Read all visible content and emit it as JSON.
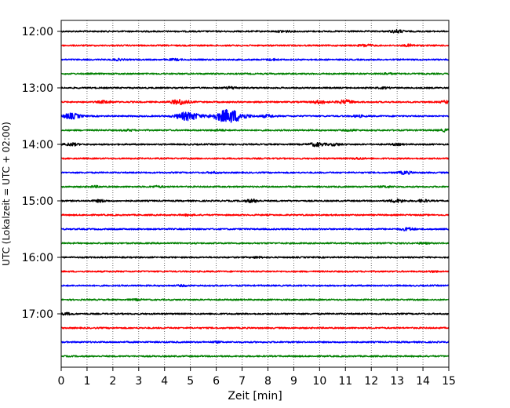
{
  "chart_data": {
    "type": "line",
    "title": "",
    "xlabel": "Zeit  [min]",
    "ylabel": "UTC (Lokalzeit = UTC + 02:00)",
    "xlim": [
      0,
      15
    ],
    "x_ticks": [
      "0",
      "1",
      "2",
      "3",
      "4",
      "5",
      "6",
      "7",
      "8",
      "9",
      "10",
      "11",
      "12",
      "13",
      "14",
      "15"
    ],
    "y_tick_labels": [
      "12:00",
      "13:00",
      "14:00",
      "15:00",
      "16:00",
      "17:00"
    ],
    "grid": "vertical dotted",
    "trace_colors": [
      "#000000",
      "#ff0000",
      "#0000ff",
      "#008000"
    ],
    "traces": [
      {
        "start": "12:00",
        "events": [
          {
            "t": 8.6,
            "a": 1.0
          },
          {
            "t": 13.0,
            "a": 1.6
          }
        ]
      },
      {
        "start": "12:15",
        "events": [
          {
            "t": 11.8,
            "a": 1.3
          },
          {
            "t": 13.5,
            "a": 1.2
          }
        ]
      },
      {
        "start": "12:30",
        "events": [
          {
            "t": 2.2,
            "a": 0.8
          },
          {
            "t": 4.4,
            "a": 0.8
          },
          {
            "t": 8.2,
            "a": 0.8
          }
        ]
      },
      {
        "start": "12:45",
        "events": [
          {
            "t": 12.6,
            "a": 0.8
          }
        ]
      },
      {
        "start": "13:00",
        "events": [
          {
            "t": 6.6,
            "a": 1.2
          },
          {
            "t": 12.5,
            "a": 0.7
          }
        ]
      },
      {
        "start": "13:15",
        "events": [
          {
            "t": 1.7,
            "a": 1.4
          },
          {
            "t": 4.6,
            "a": 3.0
          },
          {
            "t": 10.0,
            "a": 1.8
          },
          {
            "t": 11.0,
            "a": 2.2
          },
          {
            "t": 15.0,
            "a": 1.8
          }
        ]
      },
      {
        "start": "13:30",
        "events": [
          {
            "t": 0.4,
            "a": 3.2
          },
          {
            "t": 4.9,
            "a": 5.0
          },
          {
            "t": 6.5,
            "a": 8.0
          },
          {
            "t": 8.0,
            "a": 1.5
          },
          {
            "t": 11.5,
            "a": 1.0
          }
        ]
      },
      {
        "start": "13:45",
        "events": [
          {
            "t": 2.6,
            "a": 0.7
          },
          {
            "t": 6.1,
            "a": 0.8
          },
          {
            "t": 11.2,
            "a": 0.8
          },
          {
            "t": 14.9,
            "a": 1.3
          }
        ]
      },
      {
        "start": "14:00",
        "events": [
          {
            "t": 0.4,
            "a": 1.5
          },
          {
            "t": 9.9,
            "a": 2.2
          },
          {
            "t": 10.6,
            "a": 1.2
          },
          {
            "t": 13.0,
            "a": 0.8
          }
        ]
      },
      {
        "start": "14:15",
        "events": [
          {
            "t": 11.5,
            "a": 0.8
          }
        ]
      },
      {
        "start": "14:30",
        "events": [
          {
            "t": 5.9,
            "a": 0.8
          },
          {
            "t": 13.3,
            "a": 1.6
          }
        ]
      },
      {
        "start": "14:45",
        "events": [
          {
            "t": 1.3,
            "a": 0.8
          },
          {
            "t": 3.7,
            "a": 0.8
          },
          {
            "t": 12.6,
            "a": 0.8
          }
        ]
      },
      {
        "start": "15:00",
        "events": [
          {
            "t": 1.5,
            "a": 1.2
          },
          {
            "t": 7.4,
            "a": 1.7
          },
          {
            "t": 13.0,
            "a": 1.8
          },
          {
            "t": 14.0,
            "a": 1.2
          }
        ]
      },
      {
        "start": "15:15",
        "events": [
          {
            "t": 4.9,
            "a": 0.7
          }
        ]
      },
      {
        "start": "15:30",
        "events": [
          {
            "t": 13.4,
            "a": 1.6
          }
        ]
      },
      {
        "start": "15:45",
        "events": [
          {
            "t": 14.0,
            "a": 0.6
          }
        ]
      },
      {
        "start": "16:00",
        "events": [
          {
            "t": 7.6,
            "a": 0.7
          }
        ]
      },
      {
        "start": "16:15",
        "events": [
          {
            "t": 14.4,
            "a": 0.6
          }
        ]
      },
      {
        "start": "16:30",
        "events": [
          {
            "t": 4.7,
            "a": 0.6
          }
        ]
      },
      {
        "start": "16:45",
        "events": [
          {
            "t": 2.9,
            "a": 0.6
          }
        ]
      },
      {
        "start": "17:00",
        "events": [
          {
            "t": 0.2,
            "a": 1.0
          }
        ]
      },
      {
        "start": "17:15",
        "events": []
      },
      {
        "start": "17:30",
        "events": [
          {
            "t": 6.0,
            "a": 0.6
          }
        ]
      },
      {
        "start": "17:45",
        "events": []
      }
    ]
  }
}
